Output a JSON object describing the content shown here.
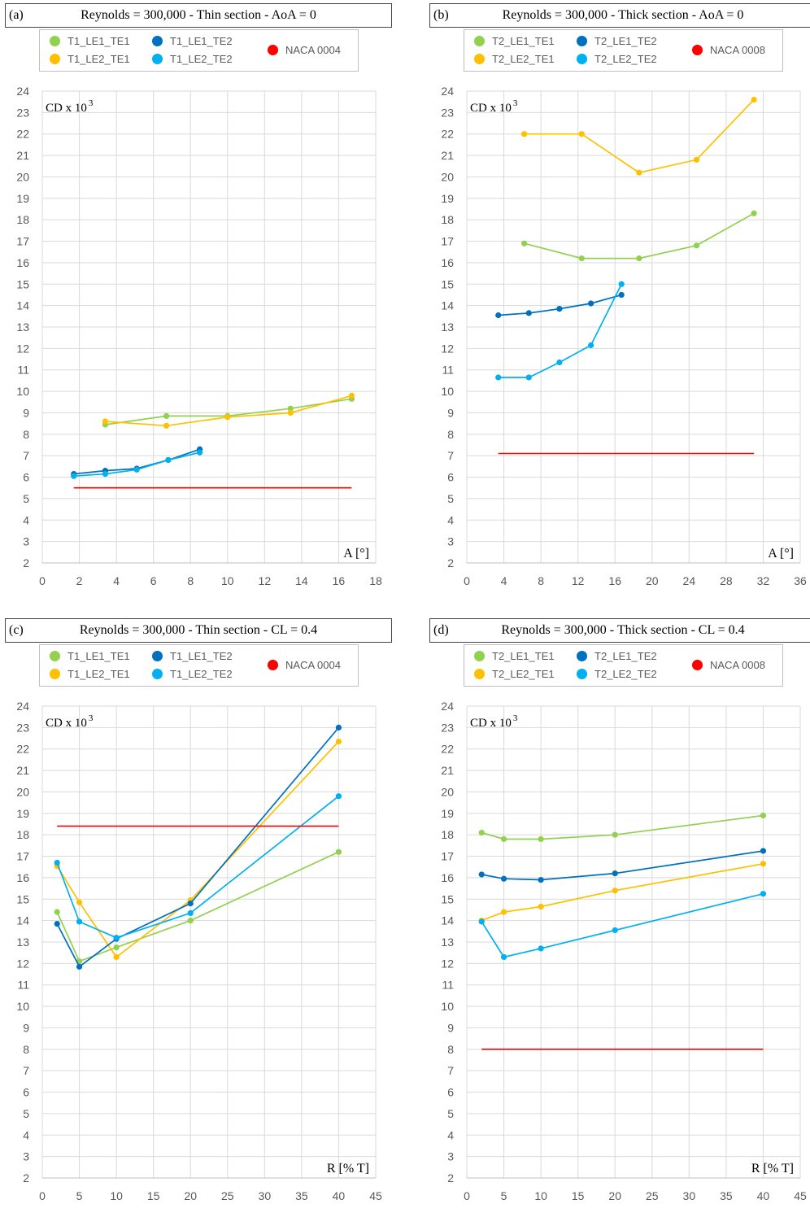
{
  "colors": {
    "green": "#92d050",
    "orange": "#ffc000",
    "darkblue": "#0070c0",
    "lightblue": "#00b0f0",
    "red": "#ff0000",
    "grid": "#d9d9d9",
    "axis": "#bfbfbf"
  },
  "chart_data": [
    {
      "type": "line",
      "panel_tag": "(a)",
      "title": "Reynolds = 300,000 - Thin section - AoA = 0",
      "y_label_main": "CD x 10",
      "y_label_sup": "3",
      "x_label": "A [°]",
      "xlim": [
        0,
        18
      ],
      "ylim": [
        2,
        24
      ],
      "x_ticks": [
        0,
        2,
        4,
        6,
        8,
        10,
        12,
        14,
        16,
        18
      ],
      "y_ticks": [
        2,
        3,
        4,
        5,
        6,
        7,
        8,
        9,
        10,
        11,
        12,
        13,
        14,
        15,
        16,
        17,
        18,
        19,
        20,
        21,
        22,
        23,
        24
      ],
      "grid": true,
      "legend": {
        "position": "top",
        "entries": [
          "T1_LE1_TE1",
          "T1_LE2_TE1",
          "T1_LE1_TE2",
          "T1_LE2_TE2",
          "NACA 0004"
        ]
      },
      "series": [
        {
          "name": "T1_LE1_TE1",
          "color": "green",
          "x": [
            3.4,
            6.7,
            10.0,
            13.4,
            16.7
          ],
          "y": [
            8.45,
            8.85,
            8.85,
            9.2,
            9.65
          ]
        },
        {
          "name": "T1_LE2_TE1",
          "color": "orange",
          "x": [
            3.4,
            6.7,
            10.0,
            13.4,
            16.7
          ],
          "y": [
            8.6,
            8.4,
            8.8,
            9.0,
            9.8
          ]
        },
        {
          "name": "T1_LE1_TE2",
          "color": "darkblue",
          "x": [
            1.7,
            3.4,
            5.1,
            6.8,
            8.5
          ],
          "y": [
            6.15,
            6.3,
            6.4,
            6.8,
            7.3
          ]
        },
        {
          "name": "T1_LE2_TE2",
          "color": "lightblue",
          "x": [
            1.7,
            3.4,
            5.1,
            6.8,
            8.5
          ],
          "y": [
            6.05,
            6.15,
            6.35,
            6.8,
            7.15
          ]
        },
        {
          "name": "NACA 0004",
          "color": "red",
          "x": [
            1.7,
            16.7
          ],
          "y": [
            5.5,
            5.5
          ],
          "markers": false
        }
      ]
    },
    {
      "type": "line",
      "panel_tag": "(b)",
      "title": "Reynolds = 300,000 - Thick section - AoA = 0",
      "y_label_main": "CD x 10",
      "y_label_sup": "3",
      "x_label": "A [°]",
      "xlim": [
        0,
        36
      ],
      "ylim": [
        2,
        24
      ],
      "x_ticks": [
        0,
        4,
        8,
        12,
        16,
        20,
        24,
        28,
        32,
        36
      ],
      "y_ticks": [
        2,
        3,
        4,
        5,
        6,
        7,
        8,
        9,
        10,
        11,
        12,
        13,
        14,
        15,
        16,
        17,
        18,
        19,
        20,
        21,
        22,
        23,
        24
      ],
      "grid": true,
      "legend": {
        "position": "top",
        "entries": [
          "T2_LE1_TE1",
          "T2_LE2_TE1",
          "T2_LE1_TE2",
          "T2_LE2_TE2",
          "NACA 0008"
        ]
      },
      "series": [
        {
          "name": "T2_LE1_TE1",
          "color": "green",
          "x": [
            6.2,
            12.4,
            18.6,
            24.8,
            31.0
          ],
          "y": [
            16.9,
            16.2,
            16.2,
            16.8,
            18.3
          ]
        },
        {
          "name": "T2_LE2_TE1",
          "color": "orange",
          "x": [
            6.2,
            12.4,
            18.6,
            24.8,
            31.0
          ],
          "y": [
            22.0,
            22.0,
            20.2,
            20.8,
            23.6
          ]
        },
        {
          "name": "T2_LE1_TE2",
          "color": "darkblue",
          "x": [
            3.4,
            6.7,
            10.0,
            13.4,
            16.7
          ],
          "y": [
            13.55,
            13.65,
            13.85,
            14.1,
            14.5
          ]
        },
        {
          "name": "T2_LE2_TE2",
          "color": "lightblue",
          "x": [
            3.4,
            6.7,
            10.0,
            13.4,
            16.7
          ],
          "y": [
            10.65,
            10.65,
            11.35,
            12.15,
            15.0
          ]
        },
        {
          "name": "NACA 0008",
          "color": "red",
          "x": [
            3.4,
            31.0
          ],
          "y": [
            7.1,
            7.1
          ],
          "markers": false
        }
      ]
    },
    {
      "type": "line",
      "panel_tag": "(c)",
      "title": "Reynolds = 300,000 - Thin section - CL = 0.4",
      "y_label_main": "CD x 10",
      "y_label_sup": "3",
      "x_label": "R [% T]",
      "xlim": [
        0,
        45
      ],
      "ylim": [
        2,
        24
      ],
      "x_ticks": [
        0,
        5,
        10,
        15,
        20,
        25,
        30,
        35,
        40,
        45
      ],
      "y_ticks": [
        2,
        3,
        4,
        5,
        6,
        7,
        8,
        9,
        10,
        11,
        12,
        13,
        14,
        15,
        16,
        17,
        18,
        19,
        20,
        21,
        22,
        23,
        24
      ],
      "grid": true,
      "legend": {
        "position": "top",
        "entries": [
          "T1_LE1_TE1",
          "T1_LE2_TE1",
          "T1_LE1_TE2",
          "T1_LE2_TE2",
          "NACA 0004"
        ]
      },
      "series": [
        {
          "name": "T1_LE1_TE1",
          "color": "green",
          "x": [
            2,
            5,
            10,
            20,
            40
          ],
          "y": [
            14.4,
            12.1,
            12.75,
            14.0,
            17.2
          ]
        },
        {
          "name": "T1_LE2_TE1",
          "color": "orange",
          "x": [
            2,
            5,
            10,
            20,
            40
          ],
          "y": [
            16.55,
            14.85,
            12.3,
            14.95,
            22.35
          ]
        },
        {
          "name": "T1_LE1_TE2",
          "color": "darkblue",
          "x": [
            2,
            5,
            10,
            20,
            40
          ],
          "y": [
            13.85,
            11.85,
            13.15,
            14.8,
            23.0
          ]
        },
        {
          "name": "T1_LE2_TE2",
          "color": "lightblue",
          "x": [
            2,
            5,
            10,
            20,
            40
          ],
          "y": [
            16.7,
            13.95,
            13.2,
            14.35,
            19.8
          ]
        },
        {
          "name": "NACA 0004",
          "color": "red",
          "x": [
            2,
            40
          ],
          "y": [
            18.4,
            18.4
          ],
          "markers": false
        }
      ]
    },
    {
      "type": "line",
      "panel_tag": "(d)",
      "title": "Reynolds = 300,000 - Thick section - CL = 0.4",
      "y_label_main": "CD x 10",
      "y_label_sup": "3",
      "x_label": "R [% T]",
      "xlim": [
        0,
        45
      ],
      "ylim": [
        2,
        24
      ],
      "x_ticks": [
        0,
        5,
        10,
        15,
        20,
        25,
        30,
        35,
        40,
        45
      ],
      "y_ticks": [
        2,
        3,
        4,
        5,
        6,
        7,
        8,
        9,
        10,
        11,
        12,
        13,
        14,
        15,
        16,
        17,
        18,
        19,
        20,
        21,
        22,
        23,
        24
      ],
      "grid": true,
      "legend": {
        "position": "top",
        "entries": [
          "T2_LE1_TE1",
          "T2_LE2_TE1",
          "T2_LE1_TE2",
          "T2_LE2_TE2",
          "NACA 0008"
        ]
      },
      "series": [
        {
          "name": "T2_LE1_TE1",
          "color": "green",
          "x": [
            2,
            5,
            10,
            20,
            40
          ],
          "y": [
            18.1,
            17.8,
            17.8,
            18.0,
            18.9
          ]
        },
        {
          "name": "T2_LE2_TE1",
          "color": "orange",
          "x": [
            2,
            5,
            10,
            20,
            40
          ],
          "y": [
            14.0,
            14.4,
            14.65,
            15.4,
            16.65
          ]
        },
        {
          "name": "T2_LE1_TE2",
          "color": "darkblue",
          "x": [
            2,
            5,
            10,
            20,
            40
          ],
          "y": [
            16.15,
            15.95,
            15.9,
            16.2,
            17.25
          ]
        },
        {
          "name": "T2_LE2_TE2",
          "color": "lightblue",
          "x": [
            2,
            5,
            10,
            20,
            40
          ],
          "y": [
            13.95,
            12.3,
            12.7,
            13.55,
            15.25
          ]
        },
        {
          "name": "NACA 0008",
          "color": "red",
          "x": [
            2,
            40
          ],
          "y": [
            8.0,
            8.0
          ],
          "markers": false
        }
      ]
    }
  ]
}
